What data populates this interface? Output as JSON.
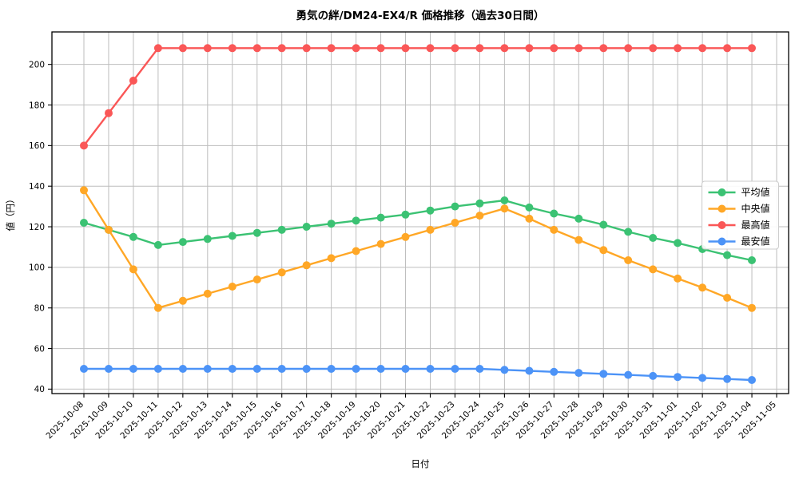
{
  "window": {
    "background": "#ffffff"
  },
  "chart_data": {
    "type": "line",
    "title": "勇気の絆/DM24-EX4/R 価格推移（過去30日間）",
    "xlabel": "日付",
    "ylabel": "値（円）",
    "grid": true,
    "legend_position": "middle-right",
    "ylim": [
      37.8,
      216
    ],
    "yticks": [
      40,
      60,
      80,
      100,
      120,
      140,
      160,
      180,
      200
    ],
    "categories": [
      "2025-10-08",
      "2025-10-09",
      "2025-10-10",
      "2025-10-11",
      "2025-10-12",
      "2025-10-13",
      "2025-10-14",
      "2025-10-15",
      "2025-10-16",
      "2025-10-17",
      "2025-10-18",
      "2025-10-19",
      "2025-10-20",
      "2025-10-21",
      "2025-10-22",
      "2025-10-23",
      "2025-10-24",
      "2025-10-25",
      "2025-10-26",
      "2025-10-27",
      "2025-10-28",
      "2025-10-29",
      "2025-10-30",
      "2025-10-31",
      "2025-11-01",
      "2025-11-02",
      "2025-11-03",
      "2025-11-04",
      "2025-11-05"
    ],
    "series": [
      {
        "name": "平均値",
        "color": "#3bc273",
        "values": [
          122,
          118.5,
          115,
          111,
          112.5,
          114,
          115.5,
          117,
          118.5,
          120,
          121.5,
          123,
          124.5,
          126,
          128,
          130,
          131.5,
          133,
          129.5,
          126.5,
          124,
          121,
          117.5,
          114.5,
          112,
          109,
          106,
          103.5,
          null
        ]
      },
      {
        "name": "中央値",
        "color": "#ffa726",
        "values": [
          138,
          118.5,
          99,
          80,
          83.5,
          87,
          90.5,
          94,
          97.5,
          101,
          104.5,
          108,
          111.5,
          115,
          118.5,
          122,
          125.5,
          129,
          124,
          118.5,
          113.5,
          108.5,
          103.5,
          99,
          94.5,
          90,
          85,
          80,
          null
        ]
      },
      {
        "name": "最高値",
        "color": "#fa5757",
        "values": [
          160,
          176,
          192,
          208,
          208,
          208,
          208,
          208,
          208,
          208,
          208,
          208,
          208,
          208,
          208,
          208,
          208,
          208,
          208,
          208,
          208,
          208,
          208,
          208,
          208,
          208,
          208,
          208,
          null
        ]
      },
      {
        "name": "最安値",
        "color": "#4c93f7",
        "values": [
          50,
          50,
          50,
          50,
          50,
          50,
          50,
          50,
          50,
          50,
          50,
          50,
          50,
          50,
          50,
          50,
          50,
          49.5,
          49,
          48.5,
          48,
          47.5,
          47,
          46.5,
          46,
          45.5,
          45,
          44.5,
          null
        ]
      }
    ],
    "style": {
      "grid_color": "#bdbdbd",
      "spine_color": "#000000",
      "legend_border": "#cccccc",
      "legend_bg": "#ffffff"
    }
  }
}
